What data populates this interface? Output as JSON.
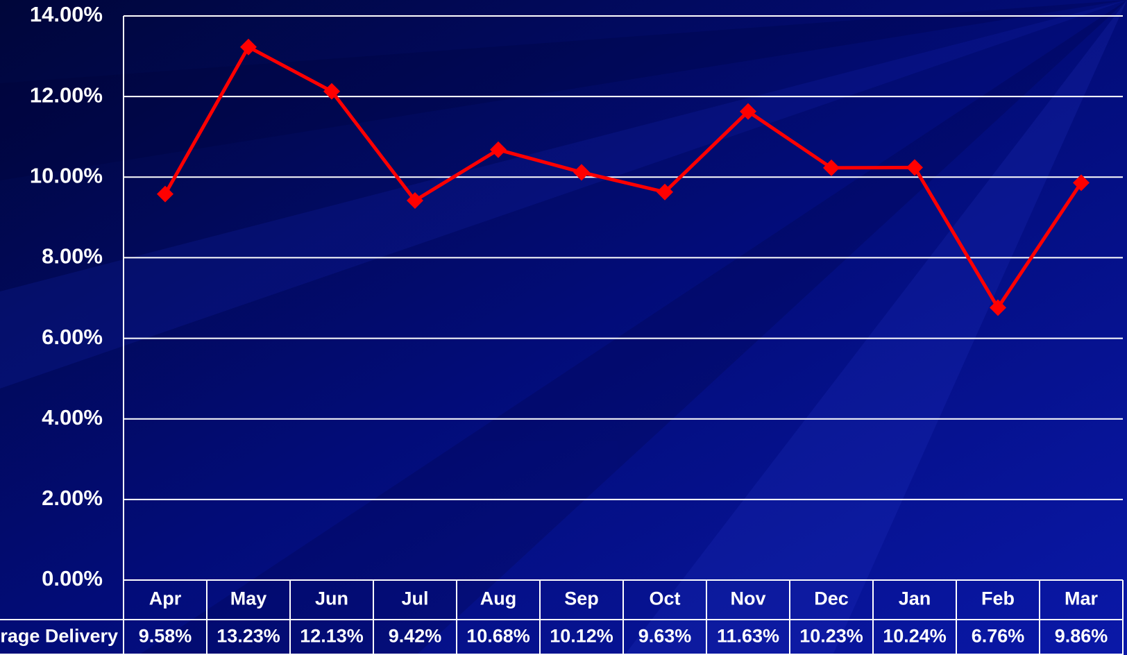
{
  "chart_data": {
    "type": "line",
    "categories": [
      "Apr",
      "May",
      "Jun",
      "Jul",
      "Aug",
      "Sep",
      "Oct",
      "Nov",
      "Dec",
      "Jan",
      "Feb",
      "Mar"
    ],
    "series": [
      {
        "name": "Average Delivery",
        "color": "#ff0000",
        "values": [
          9.58,
          13.23,
          12.13,
          9.42,
          10.68,
          10.12,
          9.63,
          11.63,
          10.23,
          10.24,
          6.76,
          9.86
        ],
        "value_labels": [
          "9.58%",
          "13.23%",
          "12.13%",
          "9.42%",
          "10.68%",
          "10.12%",
          "9.63%",
          "11.63%",
          "10.23%",
          "10.24%",
          "6.76%",
          "9.86%"
        ]
      }
    ],
    "ylim": [
      0,
      14
    ],
    "yticks": [
      {
        "value": 0,
        "label": "0.00%"
      },
      {
        "value": 2,
        "label": "2.00%"
      },
      {
        "value": 4,
        "label": "4.00%"
      },
      {
        "value": 6,
        "label": "6.00%"
      },
      {
        "value": 8,
        "label": "8.00%"
      },
      {
        "value": 10,
        "label": "10.00%"
      },
      {
        "value": 12,
        "label": "12.00%"
      },
      {
        "value": 14,
        "label": "14.00%"
      }
    ],
    "grid": true,
    "data_table": true
  }
}
